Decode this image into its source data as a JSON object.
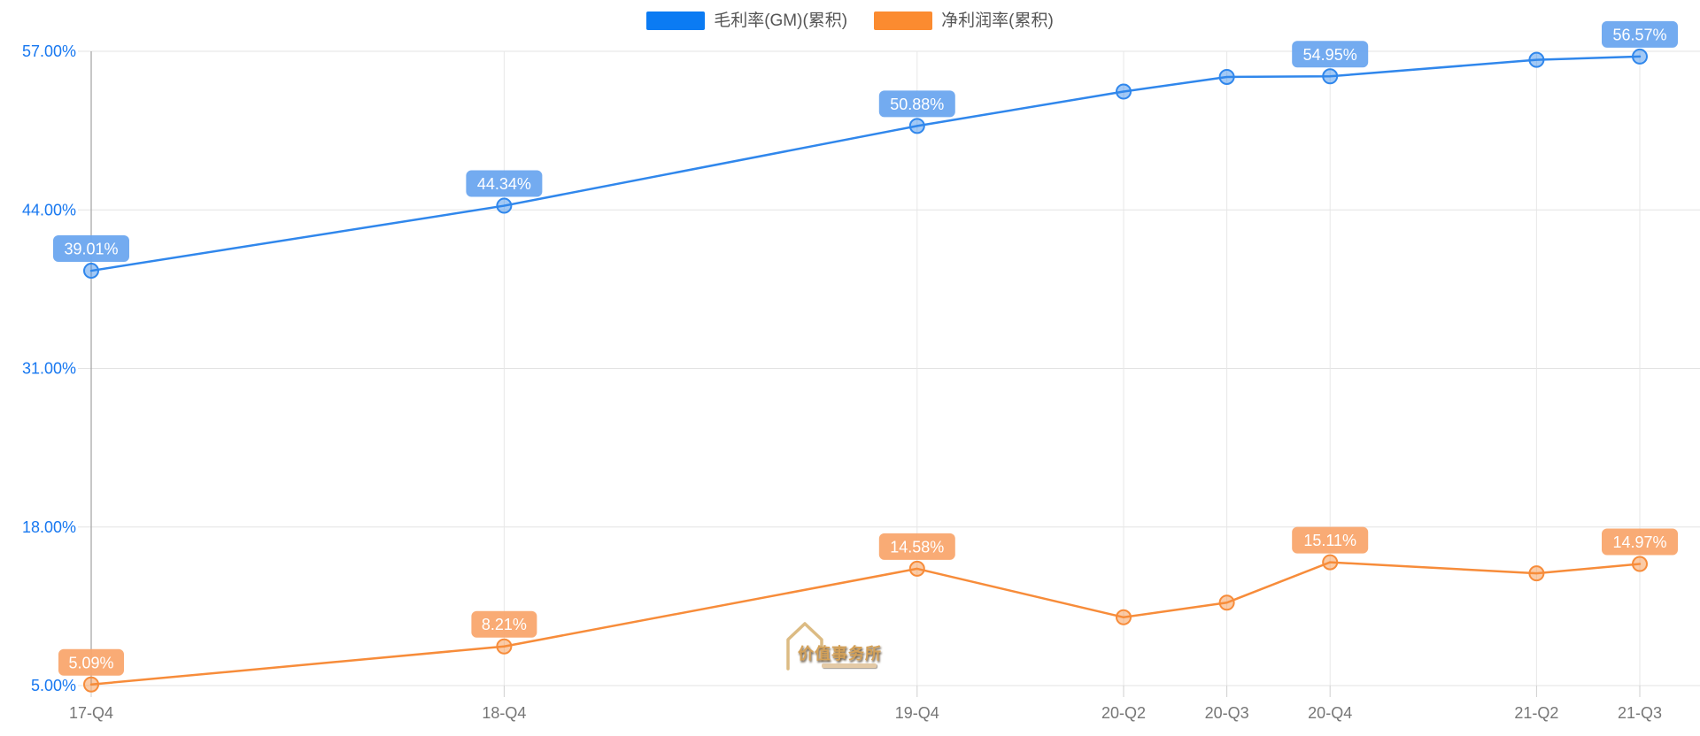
{
  "chart_data": {
    "type": "line",
    "title": "",
    "xlabel": "",
    "ylabel": "",
    "grid": true,
    "legend_position": "top-center",
    "categories": [
      "17-Q4",
      "18-Q4",
      "19-Q4",
      "20-Q2",
      "20-Q3",
      "20-Q4",
      "21-Q2",
      "21-Q3"
    ],
    "x_quarter_offsets": [
      0,
      4,
      8,
      10,
      11,
      12,
      14,
      15
    ],
    "series": [
      {
        "name": "毛利率(GM)(累积)",
        "color": "#0b7bf3",
        "line_color": "#3087ec",
        "badge_color": "#6ba6ef",
        "values": [
          39.01,
          44.34,
          50.88,
          53.7,
          54.9,
          54.95,
          56.3,
          56.57
        ],
        "point_labels": [
          "39.01%",
          "44.34%",
          "50.88%",
          null,
          null,
          "54.95%",
          null,
          "56.57%"
        ]
      },
      {
        "name": "净利润率(累积)",
        "color": "#fb8b30",
        "line_color": "#f78c3a",
        "badge_color": "#f9a66e",
        "values": [
          5.09,
          8.21,
          14.58,
          10.6,
          11.8,
          15.11,
          14.2,
          14.97
        ],
        "point_labels": [
          "5.09%",
          "8.21%",
          "14.58%",
          null,
          null,
          "15.11%",
          null,
          "14.97%"
        ]
      }
    ],
    "y_axis": {
      "min": 5,
      "max": 57,
      "ticks": [
        57,
        44,
        31,
        18,
        5
      ],
      "tick_labels": [
        "57.00%",
        "44.00%",
        "31.00%",
        "18.00%",
        "5.00%"
      ],
      "label_color": "#1878f0"
    },
    "x_axis": {
      "label_color": "#767676"
    }
  },
  "watermark": {
    "text": "价值事务所"
  }
}
